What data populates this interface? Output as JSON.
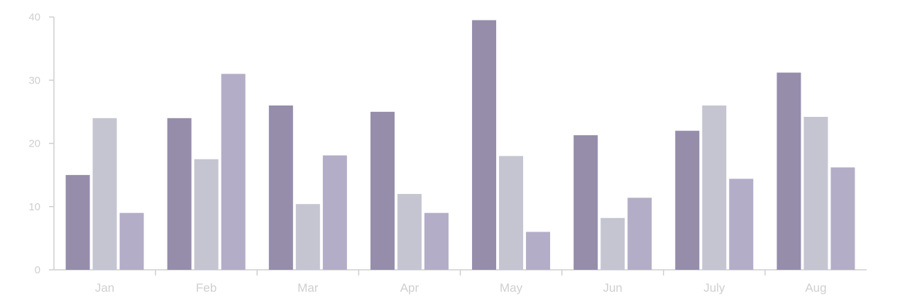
{
  "chart_data": {
    "type": "bar",
    "categories": [
      "Jan",
      "Feb",
      "Mar",
      "Apr",
      "May",
      "Jun",
      "July",
      "Aug"
    ],
    "series": [
      {
        "values": [
          15,
          24,
          26,
          25,
          39.5,
          21.3,
          22,
          31.2
        ],
        "color": "#968dab"
      },
      {
        "values": [
          24,
          17.5,
          10.4,
          12,
          18,
          8.2,
          26,
          24.2
        ],
        "color": "#c5c5d2"
      },
      {
        "values": [
          9,
          31,
          18.1,
          9,
          6,
          11.4,
          14.4,
          16.2
        ],
        "color": "#b4adc7"
      }
    ],
    "yticks": [
      0,
      10,
      20,
      30,
      40
    ],
    "ylim": [
      0,
      40
    ],
    "grid": false,
    "legend": "none",
    "axis_color": "#cfcfcf"
  }
}
